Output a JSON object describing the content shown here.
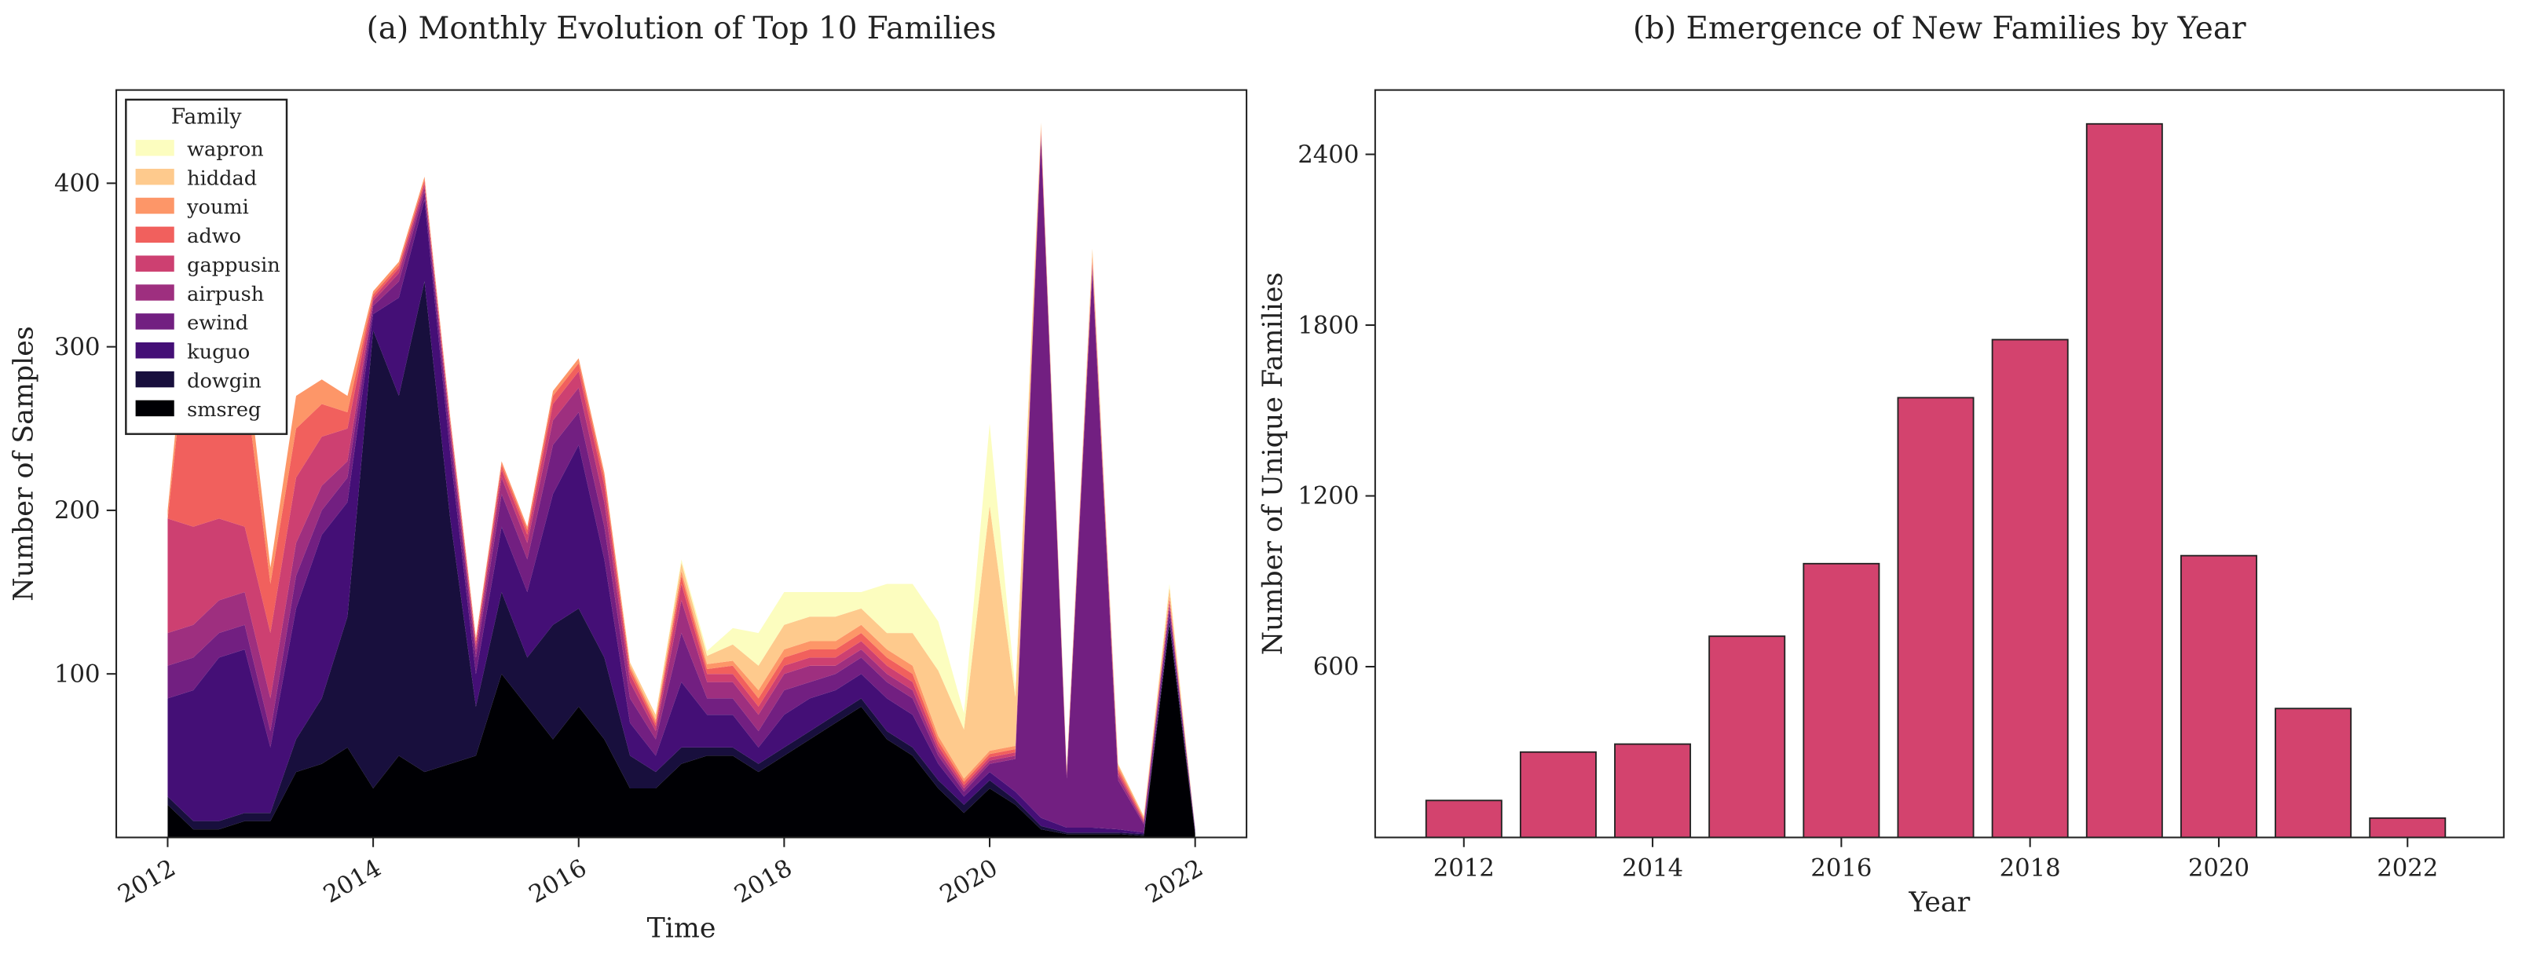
{
  "chart_data": [
    {
      "type": "stackedarea",
      "title": "(a) Monthly Evolution of Top 10 Families",
      "xlabel": "Time",
      "ylabel": "Number of Samples",
      "legend": "upper left",
      "legend_title": "Family",
      "x": [
        2012,
        2012.25,
        2012.5,
        2012.75,
        2013,
        2013.25,
        2013.5,
        2013.75,
        2014,
        2014.25,
        2014.5,
        2014.75,
        2015,
        2015.25,
        2015.5,
        2015.75,
        2016,
        2016.25,
        2016.5,
        2016.75,
        2017,
        2017.25,
        2017.5,
        2017.75,
        2018,
        2018.25,
        2018.5,
        2018.75,
        2019,
        2019.25,
        2019.5,
        2019.75,
        2020,
        2020.25,
        2020.5,
        2020.75,
        2021,
        2021.25,
        2021.5,
        2021.75,
        2022
      ],
      "xlim": [
        2011.5,
        2022.5
      ],
      "xticks": [
        2012,
        2014,
        2016,
        2018,
        2020,
        2022
      ],
      "ylim": [
        0,
        457
      ],
      "yticks": [
        100,
        200,
        300,
        400
      ],
      "series": [
        {
          "name": "smsreg",
          "color": "#000004",
          "values": [
            20,
            5,
            5,
            10,
            10,
            40,
            45,
            55,
            30,
            50,
            40,
            45,
            50,
            100,
            80,
            60,
            80,
            60,
            30,
            30,
            45,
            50,
            50,
            40,
            50,
            60,
            70,
            80,
            60,
            50,
            30,
            15,
            30,
            20,
            5,
            2,
            2,
            2,
            1,
            130,
            2
          ]
        },
        {
          "name": "dowgin",
          "color": "#180f3d",
          "values": [
            5,
            5,
            5,
            5,
            5,
            20,
            40,
            80,
            280,
            220,
            300,
            150,
            30,
            50,
            30,
            70,
            60,
            50,
            20,
            10,
            10,
            5,
            5,
            5,
            5,
            5,
            5,
            5,
            5,
            5,
            5,
            5,
            5,
            3,
            2,
            1,
            1,
            1,
            1,
            2,
            1
          ]
        },
        {
          "name": "kuguo",
          "color": "#440f76",
          "values": [
            60,
            80,
            100,
            100,
            40,
            80,
            100,
            70,
            10,
            60,
            50,
            40,
            20,
            40,
            40,
            80,
            100,
            60,
            20,
            10,
            40,
            20,
            20,
            10,
            20,
            20,
            15,
            15,
            20,
            20,
            10,
            5,
            5,
            5,
            5,
            3,
            3,
            2,
            1,
            3,
            1
          ]
        },
        {
          "name": "ewind",
          "color": "#721f81",
          "values": [
            20,
            20,
            15,
            15,
            10,
            20,
            15,
            15,
            5,
            10,
            5,
            10,
            10,
            20,
            20,
            30,
            20,
            20,
            15,
            10,
            30,
            10,
            10,
            10,
            15,
            10,
            10,
            10,
            10,
            10,
            5,
            3,
            5,
            20,
            415,
            30,
            340,
            30,
            5,
            5,
            1
          ]
        },
        {
          "name": "airpush",
          "color": "#9e2f7f",
          "values": [
            20,
            20,
            20,
            20,
            20,
            20,
            15,
            10,
            3,
            5,
            3,
            5,
            5,
            10,
            10,
            15,
            15,
            15,
            10,
            5,
            20,
            10,
            10,
            10,
            10,
            10,
            5,
            5,
            5,
            5,
            3,
            2,
            2,
            2,
            2,
            2,
            3,
            3,
            1,
            2,
            0
          ]
        },
        {
          "name": "gappusin",
          "color": "#cd4071",
          "values": [
            70,
            60,
            50,
            40,
            40,
            40,
            30,
            20,
            2,
            3,
            2,
            3,
            3,
            5,
            5,
            10,
            10,
            10,
            5,
            3,
            10,
            5,
            5,
            5,
            5,
            5,
            5,
            5,
            5,
            5,
            3,
            2,
            2,
            2,
            2,
            1,
            2,
            2,
            1,
            2,
            0
          ]
        },
        {
          "name": "adwo",
          "color": "#f1605d",
          "values": [
            0,
            150,
            100,
            90,
            30,
            30,
            20,
            10,
            2,
            2,
            2,
            2,
            2,
            3,
            3,
            5,
            5,
            5,
            3,
            2,
            5,
            3,
            5,
            5,
            5,
            5,
            5,
            5,
            5,
            5,
            3,
            2,
            2,
            2,
            2,
            1,
            2,
            2,
            1,
            2,
            0
          ]
        },
        {
          "name": "youmi",
          "color": "#fd9668",
          "values": [
            5,
            20,
            20,
            20,
            10,
            20,
            15,
            10,
            2,
            2,
            2,
            2,
            2,
            2,
            2,
            3,
            3,
            3,
            2,
            2,
            3,
            3,
            3,
            5,
            5,
            5,
            5,
            5,
            5,
            5,
            3,
            2,
            2,
            2,
            2,
            1,
            3,
            2,
            1,
            2,
            0
          ]
        },
        {
          "name": "hiddad",
          "color": "#feca8d",
          "values": [
            0,
            0,
            0,
            0,
            0,
            0,
            0,
            0,
            0,
            0,
            0,
            0,
            0,
            0,
            0,
            0,
            0,
            0,
            2,
            3,
            5,
            5,
            10,
            15,
            15,
            15,
            15,
            10,
            10,
            20,
            40,
            30,
            150,
            30,
            2,
            1,
            4,
            1,
            1,
            5,
            0
          ]
        },
        {
          "name": "wapron",
          "color": "#fcfdbf",
          "values": [
            0,
            0,
            0,
            0,
            0,
            0,
            0,
            0,
            0,
            0,
            0,
            0,
            0,
            0,
            0,
            0,
            0,
            0,
            0,
            0,
            2,
            3,
            10,
            20,
            20,
            15,
            15,
            10,
            30,
            30,
            30,
            10,
            50,
            5,
            0,
            0,
            0,
            0,
            0,
            2,
            0
          ]
        }
      ]
    },
    {
      "type": "bar",
      "title": "(b) Emergence of New Families by Year",
      "xlabel": "Year",
      "ylabel": "Number of Unique Families",
      "color": "#d3436e",
      "x": [
        2012,
        2013,
        2014,
        2015,
        2016,
        2017,
        2018,
        2019,
        2020,
        2021,
        2022
      ],
      "values": [
        130,
        300,
        328,
        707,
        962,
        1545,
        1749,
        2507,
        990,
        453,
        68
      ],
      "xlim": [
        2011.06,
        2023.02
      ],
      "xticks": [
        2012,
        2014,
        2016,
        2018,
        2020,
        2022
      ],
      "ylim": [
        0,
        2626
      ],
      "yticks": [
        600,
        1200,
        1800,
        2400
      ]
    }
  ]
}
